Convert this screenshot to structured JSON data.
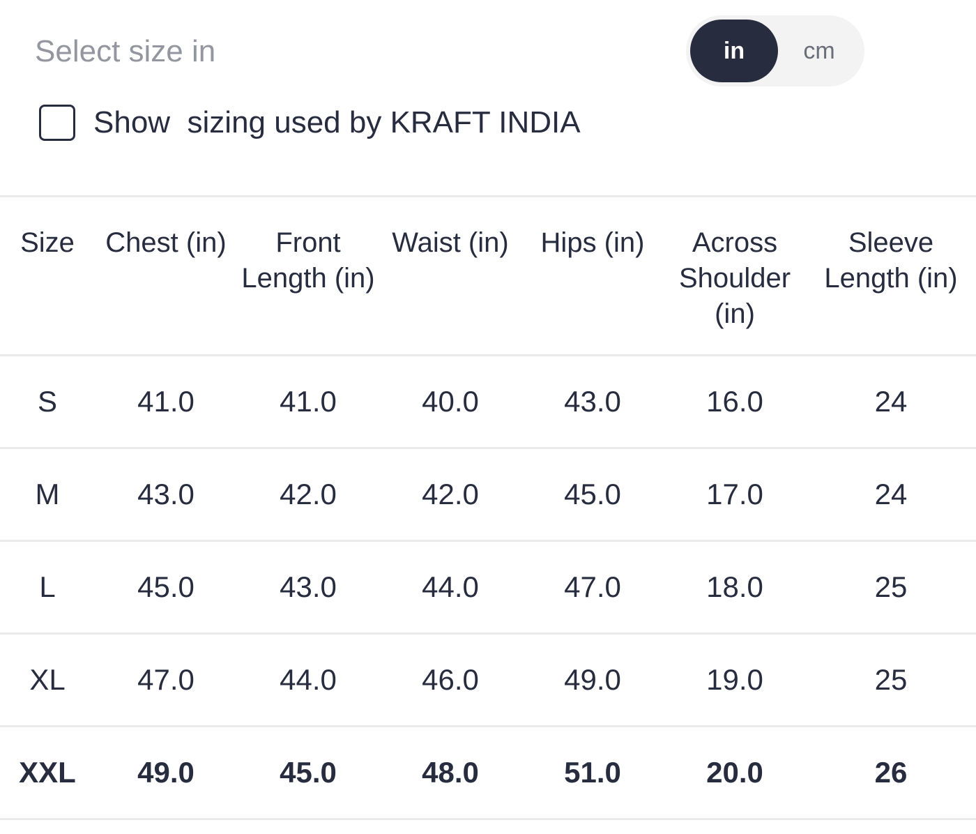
{
  "unit_selector": {
    "label": "Select size in",
    "options": [
      "in",
      "cm"
    ],
    "selected": "in"
  },
  "brand_sizing": {
    "label": "Show  sizing used by KRAFT INDIA",
    "checked": false
  },
  "size_table": {
    "headers": [
      "Size",
      "Chest (in)",
      "Front Length (in)",
      "Waist (in)",
      "Hips (in)",
      "Across Shoulder (in)",
      "Sleeve Length (in)"
    ],
    "rows": [
      [
        "S",
        "41.0",
        "41.0",
        "40.0",
        "43.0",
        "16.0",
        "24"
      ],
      [
        "M",
        "43.0",
        "42.0",
        "42.0",
        "45.0",
        "17.0",
        "24"
      ],
      [
        "L",
        "45.0",
        "43.0",
        "44.0",
        "47.0",
        "18.0",
        "25"
      ],
      [
        "XL",
        "47.0",
        "44.0",
        "46.0",
        "49.0",
        "19.0",
        "25"
      ],
      [
        "XXL",
        "49.0",
        "45.0",
        "48.0",
        "51.0",
        "20.0",
        "26"
      ]
    ],
    "selected_size": "XXL"
  },
  "colors": {
    "text_primary": "#282c3f",
    "text_muted": "#94969f",
    "toggle_active_bg": "#282c3f",
    "toggle_track_bg": "#f3f3f4",
    "divider": "#eaeaec"
  }
}
